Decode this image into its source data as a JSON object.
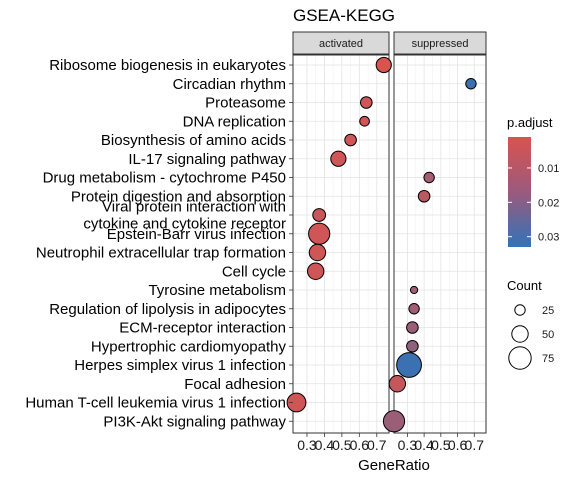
{
  "chart_data": {
    "type": "scatter",
    "title": "GSEA-KEGG",
    "xlabel": "GeneRatio",
    "ylabel": "",
    "xlim": [
      0.22,
      0.77
    ],
    "x_ticks": [
      0.3,
      0.4,
      0.5,
      0.6,
      0.7
    ],
    "x_tick_labels": [
      "0.3",
      "0.4",
      "0.5",
      "0.6",
      "0.7"
    ],
    "facets": [
      "activated",
      "suppressed"
    ],
    "grid": true,
    "legend_position": "right",
    "categories": [
      "Ribosome biogenesis in eukaryotes",
      "Circadian rhythm",
      "Proteasome",
      "DNA replication",
      "Biosynthesis of amino acids",
      "IL-17 signaling pathway",
      "Drug metabolism - cytochrome P450",
      "Protein digestion and absorption",
      "Viral protein interaction with\ncytokine and cytokine receptor",
      "Epstein-Barr virus infection",
      "Neutrophil extracellular trap formation",
      "Cell cycle",
      "Tyrosine metabolism",
      "Regulation of lipolysis in adipocytes",
      "ECM-receptor interaction",
      "Hypertrophic cardiomyopathy",
      "Herpes simplex virus 1 infection",
      "Focal adhesion",
      "Human T-cell leukemia virus 1 infection",
      "PI3K-Akt signaling pathway"
    ],
    "points": [
      {
        "pathway": "Ribosome biogenesis in eukaryotes",
        "facet": "activated",
        "x": 0.74,
        "count": 45,
        "p_adjust": 0.001
      },
      {
        "pathway": "Circadian rhythm",
        "facet": "suppressed",
        "x": 0.68,
        "count": 25,
        "p_adjust": 0.031
      },
      {
        "pathway": "Proteasome",
        "facet": "activated",
        "x": 0.64,
        "count": 30,
        "p_adjust": 0.003
      },
      {
        "pathway": "DNA replication",
        "facet": "activated",
        "x": 0.63,
        "count": 22,
        "p_adjust": 0.003
      },
      {
        "pathway": "Biosynthesis of amino acids",
        "facet": "activated",
        "x": 0.55,
        "count": 30,
        "p_adjust": 0.003
      },
      {
        "pathway": "IL-17 signaling pathway",
        "facet": "activated",
        "x": 0.48,
        "count": 45,
        "p_adjust": 0.003
      },
      {
        "pathway": "Drug metabolism - cytochrome P450",
        "facet": "suppressed",
        "x": 0.43,
        "count": 25,
        "p_adjust": 0.011
      },
      {
        "pathway": "Protein digestion and absorption",
        "facet": "suppressed",
        "x": 0.4,
        "count": 30,
        "p_adjust": 0.007
      },
      {
        "pathway": "Viral protein interaction with\ncytokine and cytokine receptor",
        "facet": "activated",
        "x": 0.37,
        "count": 35,
        "p_adjust": 0.004
      },
      {
        "pathway": "Epstein-Barr virus infection",
        "facet": "activated",
        "x": 0.37,
        "count": 70,
        "p_adjust": 0.003
      },
      {
        "pathway": "Neutrophil extracellular trap formation",
        "facet": "activated",
        "x": 0.36,
        "count": 50,
        "p_adjust": 0.003
      },
      {
        "pathway": "Cell cycle",
        "facet": "activated",
        "x": 0.35,
        "count": 50,
        "p_adjust": 0.003
      },
      {
        "pathway": "Tyrosine metabolism",
        "facet": "suppressed",
        "x": 0.34,
        "count": 12,
        "p_adjust": 0.012
      },
      {
        "pathway": "Regulation of lipolysis in adipocytes",
        "facet": "suppressed",
        "x": 0.34,
        "count": 25,
        "p_adjust": 0.012
      },
      {
        "pathway": "ECM-receptor interaction",
        "facet": "suppressed",
        "x": 0.33,
        "count": 30,
        "p_adjust": 0.013
      },
      {
        "pathway": "Hypertrophic cardiomyopathy",
        "facet": "suppressed",
        "x": 0.33,
        "count": 30,
        "p_adjust": 0.015
      },
      {
        "pathway": "Herpes simplex virus 1 infection",
        "facet": "suppressed",
        "x": 0.31,
        "count": 85,
        "p_adjust": 0.031
      },
      {
        "pathway": "Focal adhesion",
        "facet": "suppressed",
        "x": 0.24,
        "count": 50,
        "p_adjust": 0.005
      },
      {
        "pathway": "Human T-cell leukemia virus 1 infection",
        "facet": "activated",
        "x": 0.24,
        "count": 60,
        "p_adjust": 0.003
      },
      {
        "pathway": "PI3K-Akt signaling pathway",
        "facet": "suppressed",
        "x": 0.22,
        "count": 70,
        "p_adjust": 0.013
      }
    ],
    "color_legend": {
      "title": "p.adjust",
      "ticks": [
        0.01,
        0.02,
        0.03
      ],
      "tick_labels": [
        "0.01",
        "0.02",
        "0.03"
      ],
      "range": [
        0.001,
        0.033
      ],
      "low_color": "#d9534f",
      "high_color": "#3273b8"
    },
    "size_legend": {
      "title": "Count",
      "values": [
        25,
        50,
        75
      ],
      "labels": [
        "25",
        "50",
        "75"
      ]
    }
  }
}
